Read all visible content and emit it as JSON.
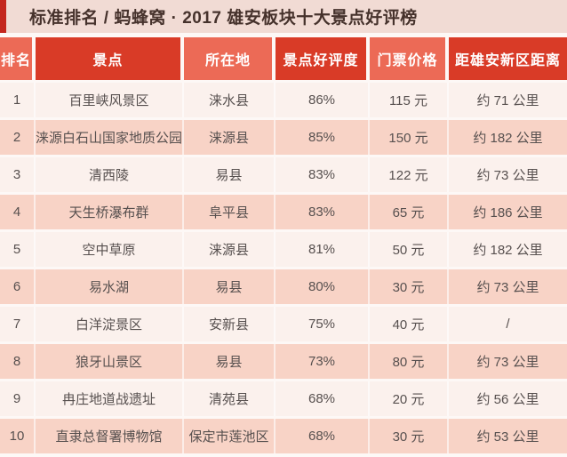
{
  "title": {
    "text": "标准排名 / 蚂蜂窝 · 2017 雄安板块十大景点好评榜"
  },
  "colors": {
    "accent_bar": "#c4261d",
    "title_bar_bg": "#f1dbd4",
    "title_text": "#46322c",
    "header_light": "#ec6a56",
    "header_dark": "#d93b27",
    "header_text": "#ffffff",
    "row_light_bg": "#fbf1ed",
    "row_pink_bg": "#f8d3c6",
    "body_text": "#57504f"
  },
  "table": {
    "columns": [
      {
        "key": "rank",
        "label": "排名"
      },
      {
        "key": "spot",
        "label": "景点"
      },
      {
        "key": "location",
        "label": "所在地"
      },
      {
        "key": "rating",
        "label": "景点好评度"
      },
      {
        "key": "price",
        "label": "门票价格"
      },
      {
        "key": "distance",
        "label": "距雄安新区距离"
      }
    ],
    "rows": [
      {
        "rank": "1",
        "spot": "百里峡风景区",
        "location": "涞水县",
        "rating": "86%",
        "price": "115 元",
        "distance": "约 71 公里"
      },
      {
        "rank": "2",
        "spot": "涞源白石山国家地质公园",
        "location": "涞源县",
        "rating": "85%",
        "price": "150 元",
        "distance": "约 182 公里"
      },
      {
        "rank": "3",
        "spot": "清西陵",
        "location": "易县",
        "rating": "83%",
        "price": "122 元",
        "distance": "约 73 公里"
      },
      {
        "rank": "4",
        "spot": "天生桥瀑布群",
        "location": "阜平县",
        "rating": "83%",
        "price": "65 元",
        "distance": "约 186 公里"
      },
      {
        "rank": "5",
        "spot": "空中草原",
        "location": "涞源县",
        "rating": "81%",
        "price": "50 元",
        "distance": "约 182 公里"
      },
      {
        "rank": "6",
        "spot": "易水湖",
        "location": "易县",
        "rating": "80%",
        "price": "30 元",
        "distance": "约 73 公里"
      },
      {
        "rank": "7",
        "spot": "白洋淀景区",
        "location": "安新县",
        "rating": "75%",
        "price": "40 元",
        "distance": "/"
      },
      {
        "rank": "8",
        "spot": "狼牙山景区",
        "location": "易县",
        "rating": "73%",
        "price": "80 元",
        "distance": "约 73 公里"
      },
      {
        "rank": "9",
        "spot": "冉庄地道战遗址",
        "location": "清苑县",
        "rating": "68%",
        "price": "20 元",
        "distance": "约 56 公里"
      },
      {
        "rank": "10",
        "spot": "直隶总督署博物馆",
        "location": "保定市莲池区",
        "rating": "68%",
        "price": "30 元",
        "distance": "约 53 公里"
      }
    ]
  },
  "chart_data": {
    "type": "table",
    "title": "标准排名 / 蚂蜂窝 · 2017 雄安板块十大景点好评榜",
    "columns": [
      "排名",
      "景点",
      "所在地",
      "景点好评度",
      "门票价格",
      "距雄安新区距离"
    ],
    "rows": [
      [
        "1",
        "百里峡风景区",
        "涞水县",
        "86%",
        "115 元",
        "约 71 公里"
      ],
      [
        "2",
        "涞源白石山国家地质公园",
        "涞源县",
        "85%",
        "150 元",
        "约 182 公里"
      ],
      [
        "3",
        "清西陵",
        "易县",
        "83%",
        "122 元",
        "约 73 公里"
      ],
      [
        "4",
        "天生桥瀑布群",
        "阜平县",
        "83%",
        "65 元",
        "约 186 公里"
      ],
      [
        "5",
        "空中草原",
        "涞源县",
        "81%",
        "50 元",
        "约 182 公里"
      ],
      [
        "6",
        "易水湖",
        "易县",
        "80%",
        "30 元",
        "约 73 公里"
      ],
      [
        "7",
        "白洋淀景区",
        "安新县",
        "75%",
        "40 元",
        "/"
      ],
      [
        "8",
        "狼牙山景区",
        "易县",
        "73%",
        "80 元",
        "约 73 公里"
      ],
      [
        "9",
        "冉庄地道战遗址",
        "清苑县",
        "68%",
        "20 元",
        "约 56 公里"
      ],
      [
        "10",
        "直隶总督署博物馆",
        "保定市莲池区",
        "68%",
        "30 元",
        "约 53 公里"
      ]
    ]
  }
}
